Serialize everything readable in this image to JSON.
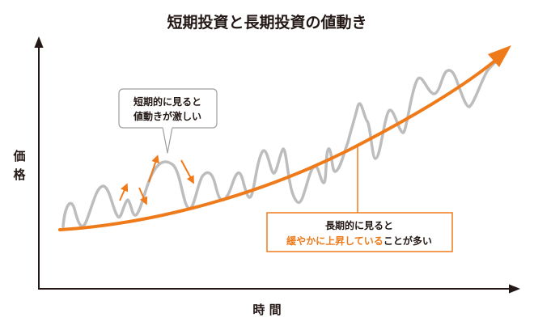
{
  "title": "短期投資と長期投資の値動き",
  "y_axis_label": [
    "価",
    "格"
  ],
  "x_axis_label": "時 間",
  "short_term_callout": {
    "line1": "短期的に見ると",
    "line2": "値動きが激しい"
  },
  "long_term_callout": {
    "line1": "長期的に見ると",
    "line2_highlight": "緩やかに上昇している",
    "line2_rest": "ことが多い"
  },
  "colors": {
    "accent_orange": "#ee7a1a",
    "fluctuation_gray": "#bdbdbd",
    "axis": "#231815"
  }
}
